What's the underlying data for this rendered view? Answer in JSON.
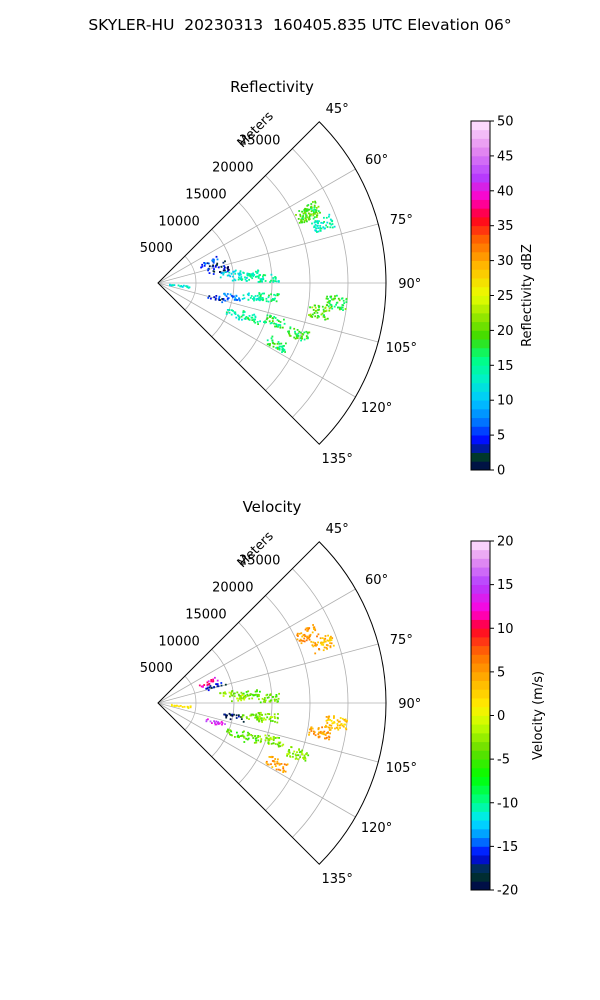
{
  "figure": {
    "title": "SKYLER-HU  20230313  160405.835 UTC Elevation 06°"
  },
  "chart_data": [
    {
      "type": "polar-sector-radar",
      "title": "Reflectivity",
      "radial_label": "Meters",
      "radial_ticks": [
        "5000",
        "10000",
        "15000",
        "20000",
        "25000"
      ],
      "radial_tick_values": [
        5000,
        10000,
        15000,
        20000,
        25000
      ],
      "radial_max": 30000,
      "angle_range_deg": [
        45,
        135
      ],
      "angle_ticks": [
        "45°",
        "60°",
        "75°",
        "90°",
        "105°",
        "120°",
        "135°"
      ],
      "angle_tick_values": [
        45,
        60,
        75,
        90,
        105,
        120,
        135
      ],
      "grid": true,
      "colorbar": {
        "label": "Reflectivity dBZ",
        "min": 0,
        "max": 50,
        "ticks": [
          "0",
          "5",
          "10",
          "15",
          "20",
          "25",
          "30",
          "35",
          "40",
          "45",
          "50"
        ],
        "tick_values": [
          0,
          5,
          10,
          15,
          20,
          25,
          30,
          35,
          40,
          45,
          50
        ]
      },
      "echo_clusters": [
        {
          "azimuth_deg": 67,
          "range_m": 7200,
          "value": 5
        },
        {
          "azimuth_deg": 73,
          "range_m": 7800,
          "value": 3
        },
        {
          "azimuth_deg": 78,
          "range_m": 8200,
          "value": 2
        },
        {
          "azimuth_deg": 82,
          "range_m": 9500,
          "value": 11
        },
        {
          "azimuth_deg": 84,
          "range_m": 12000,
          "value": 13
        },
        {
          "azimuth_deg": 87,
          "range_m": 14500,
          "value": 15
        },
        {
          "azimuth_deg": 86,
          "range_m": 11000,
          "value": 14
        },
        {
          "azimuth_deg": 100,
          "range_m": 10000,
          "value": 8
        },
        {
          "azimuth_deg": 98,
          "range_m": 12500,
          "value": 14
        },
        {
          "azimuth_deg": 97,
          "range_m": 14500,
          "value": 16
        },
        {
          "azimuth_deg": 104,
          "range_m": 8000,
          "value": 4
        },
        {
          "azimuth_deg": 112,
          "range_m": 11000,
          "value": 14
        },
        {
          "azimuth_deg": 110,
          "range_m": 13000,
          "value": 16
        },
        {
          "azimuth_deg": 108,
          "range_m": 16000,
          "value": 17
        },
        {
          "azimuth_deg": 110,
          "range_m": 19500,
          "value": 18
        },
        {
          "azimuth_deg": 117,
          "range_m": 17500,
          "value": 17
        },
        {
          "azimuth_deg": 100,
          "range_m": 21500,
          "value": 20
        },
        {
          "azimuth_deg": 96,
          "range_m": 23500,
          "value": 18
        },
        {
          "azimuth_deg": 65,
          "range_m": 21500,
          "value": 19
        },
        {
          "azimuth_deg": 64,
          "range_m": 22000,
          "value": 19
        },
        {
          "azimuth_deg": 70,
          "range_m": 23000,
          "value": 14
        },
        {
          "azimuth_deg": 96,
          "range_m": 2800,
          "value": 12
        }
      ]
    },
    {
      "type": "polar-sector-radar",
      "title": "Velocity",
      "radial_label": "Meters",
      "radial_ticks": [
        "5000",
        "10000",
        "15000",
        "20000",
        "25000"
      ],
      "radial_tick_values": [
        5000,
        10000,
        15000,
        20000,
        25000
      ],
      "radial_max": 30000,
      "angle_range_deg": [
        45,
        135
      ],
      "angle_ticks": [
        "45°",
        "60°",
        "75°",
        "90°",
        "105°",
        "120°",
        "135°"
      ],
      "angle_tick_values": [
        45,
        60,
        75,
        90,
        105,
        120,
        135
      ],
      "grid": true,
      "colorbar": {
        "label": "Velocity (m/s)",
        "min": -20,
        "max": 20,
        "ticks": [
          "-20",
          "-15",
          "-10",
          "-5",
          "0",
          "5",
          "10",
          "15",
          "20"
        ],
        "tick_values": [
          -20,
          -15,
          -10,
          -5,
          0,
          5,
          10,
          15,
          20
        ]
      },
      "echo_clusters": [
        {
          "azimuth_deg": 67,
          "range_m": 7200,
          "value": 12
        },
        {
          "azimuth_deg": 73,
          "range_m": 7800,
          "value": -17
        },
        {
          "azimuth_deg": 82,
          "range_m": 9500,
          "value": -3
        },
        {
          "azimuth_deg": 84,
          "range_m": 12000,
          "value": -5
        },
        {
          "azimuth_deg": 87,
          "range_m": 14500,
          "value": -4
        },
        {
          "azimuth_deg": 86,
          "range_m": 11000,
          "value": -2
        },
        {
          "azimuth_deg": 100,
          "range_m": 10000,
          "value": -18
        },
        {
          "azimuth_deg": 98,
          "range_m": 12500,
          "value": -4
        },
        {
          "azimuth_deg": 97,
          "range_m": 14500,
          "value": -3
        },
        {
          "azimuth_deg": 108,
          "range_m": 8000,
          "value": 14
        },
        {
          "azimuth_deg": 112,
          "range_m": 11000,
          "value": -5
        },
        {
          "azimuth_deg": 110,
          "range_m": 13000,
          "value": -4
        },
        {
          "azimuth_deg": 108,
          "range_m": 16000,
          "value": -3
        },
        {
          "azimuth_deg": 110,
          "range_m": 19500,
          "value": -3
        },
        {
          "azimuth_deg": 117,
          "range_m": 17500,
          "value": 5
        },
        {
          "azimuth_deg": 100,
          "range_m": 21500,
          "value": 5
        },
        {
          "azimuth_deg": 96,
          "range_m": 23500,
          "value": 3
        },
        {
          "azimuth_deg": 65,
          "range_m": 21500,
          "value": 5
        },
        {
          "azimuth_deg": 70,
          "range_m": 23000,
          "value": 4
        },
        {
          "azimuth_deg": 96,
          "range_m": 2800,
          "value": 1
        }
      ]
    }
  ]
}
